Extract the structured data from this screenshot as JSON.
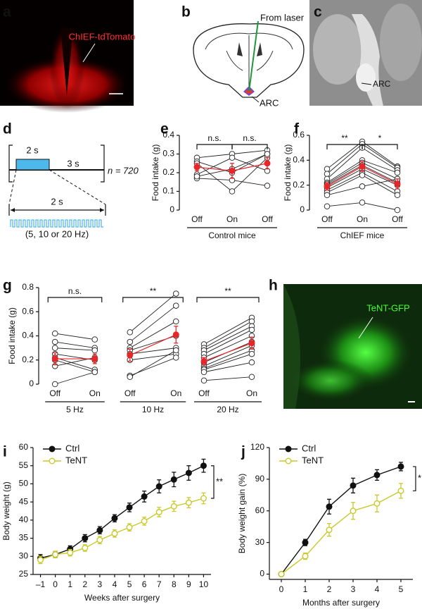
{
  "figure": {
    "letters": [
      "a",
      "b",
      "c",
      "d",
      "e",
      "f",
      "g",
      "h",
      "i",
      "j"
    ],
    "a": {
      "label": "ChIEF-tdTomato"
    },
    "b": {
      "laser": "From laser",
      "region": "ARC"
    },
    "c": {
      "region": "ARC"
    },
    "d": {
      "pulse": "2 s",
      "rest": "3 s",
      "count": "n = 720",
      "zoom": "2 s",
      "freq": "(5, 10 or 20 Hz)"
    },
    "h": {
      "label": "TeNT-GFP"
    }
  },
  "chart_data": [
    {
      "type": "line",
      "ylabel": "Food intake (g)",
      "ylim": [
        0,
        0.4
      ],
      "yticks": [
        0,
        0.1,
        0.2,
        0.3,
        0.4
      ],
      "mean_color": "#e8262a",
      "groups": [
        {
          "label": "Control mice",
          "categories": [
            "Off",
            "On",
            "Off"
          ],
          "subjects": [
            [
              0.28,
              0.3,
              0.32
            ],
            [
              0.26,
              0.2,
              0.3
            ],
            [
              0.25,
              0.1,
              0.28
            ],
            [
              0.19,
              0.28,
              0.21
            ],
            [
              0.17,
              0.16,
              0.13
            ],
            [
              0.18,
              0.22,
              0.3
            ]
          ],
          "mean": [
            0.23,
            0.21,
            0.25
          ],
          "error": [
            0.02,
            0.04,
            0.03
          ],
          "annotations": [
            "n.s.",
            "n.s."
          ]
        }
      ]
    },
    {
      "type": "line",
      "ylabel": "Food intake (g)",
      "ylim": [
        0,
        0.6
      ],
      "yticks": [
        0,
        0.2,
        0.4,
        0.6
      ],
      "mean_color": "#e8262a",
      "groups": [
        {
          "label": "ChIEF mice",
          "categories": [
            "Off",
            "On",
            "Off"
          ],
          "subjects": [
            [
              0.33,
              0.55,
              0.35
            ],
            [
              0.29,
              0.53,
              0.34
            ],
            [
              0.25,
              0.5,
              0.32
            ],
            [
              0.22,
              0.4,
              0.3
            ],
            [
              0.21,
              0.38,
              0.25
            ],
            [
              0.2,
              0.36,
              0.22
            ],
            [
              0.18,
              0.33,
              0.2
            ],
            [
              0.16,
              0.3,
              0.15
            ],
            [
              0.14,
              0.28,
              0.12
            ],
            [
              0.12,
              0.19,
              0.25
            ],
            [
              0.03,
              0.06,
              0.0
            ]
          ],
          "mean": [
            0.19,
            0.35,
            0.21
          ],
          "error": [
            0.03,
            0.04,
            0.04
          ],
          "annotations": [
            "**",
            "*"
          ]
        }
      ]
    },
    {
      "type": "line",
      "ylabel": "Food intake (g)",
      "ylim": [
        0,
        0.8
      ],
      "yticks": [
        0,
        0.2,
        0.4,
        0.6,
        0.8
      ],
      "mean_color": "#e8262a",
      "groups": [
        {
          "label": "5 Hz",
          "categories": [
            "Off",
            "On"
          ],
          "subjects": [
            [
              0.42,
              0.37
            ],
            [
              0.35,
              0.3
            ],
            [
              0.3,
              0.28
            ],
            [
              0.25,
              0.2
            ],
            [
              0.22,
              0.12
            ],
            [
              0.2,
              0.1
            ],
            [
              0.15,
              0.22
            ],
            [
              0.0,
              0.1
            ]
          ],
          "mean": [
            0.21,
            0.21
          ],
          "error": [
            0.05,
            0.04
          ],
          "annotations": [
            "n.s."
          ]
        },
        {
          "label": "10 Hz",
          "categories": [
            "Off",
            "On"
          ],
          "subjects": [
            [
              0.43,
              0.75
            ],
            [
              0.35,
              0.65
            ],
            [
              0.3,
              0.52
            ],
            [
              0.28,
              0.4
            ],
            [
              0.25,
              0.3
            ],
            [
              0.2,
              0.25
            ],
            [
              0.07,
              0.22
            ],
            [
              0.06,
              0.28
            ]
          ],
          "mean": [
            0.24,
            0.41
          ],
          "error": [
            0.05,
            0.07
          ],
          "annotations": [
            "**"
          ]
        },
        {
          "label": "20 Hz",
          "categories": [
            "Off",
            "On"
          ],
          "subjects": [
            [
              0.33,
              0.55
            ],
            [
              0.3,
              0.52
            ],
            [
              0.28,
              0.48
            ],
            [
              0.25,
              0.45
            ],
            [
              0.22,
              0.4
            ],
            [
              0.18,
              0.35
            ],
            [
              0.15,
              0.32
            ],
            [
              0.13,
              0.28
            ],
            [
              0.12,
              0.25
            ],
            [
              0.1,
              0.18
            ],
            [
              0.03,
              0.06
            ]
          ],
          "mean": [
            0.19,
            0.34
          ],
          "error": [
            0.03,
            0.05
          ],
          "annotations": [
            "**"
          ]
        }
      ]
    },
    {
      "type": "line",
      "xlabel": "Weeks after surgery",
      "ylabel": "Body weight (g)",
      "legend": "upper left",
      "annotations": [
        "**"
      ],
      "x": [
        -1,
        0,
        1,
        2,
        3,
        4,
        5,
        6,
        7,
        8,
        9,
        10
      ],
      "xlim": [
        -1.5,
        10.5
      ],
      "xticks": [
        {
          "value": -1,
          "label": "–1"
        },
        0,
        1,
        2,
        3,
        4,
        5,
        6,
        7,
        8,
        9,
        10
      ],
      "ylim": [
        25,
        60
      ],
      "yticks": [
        25,
        30,
        35,
        40,
        45,
        50,
        55,
        60
      ],
      "series": [
        {
          "name": "Ctrl",
          "color": "#111111",
          "filled": true,
          "values": [
            29.5,
            30.5,
            32,
            35,
            37.2,
            40.5,
            43.5,
            46.5,
            49.3,
            51.2,
            53,
            55
          ],
          "errors": [
            1,
            0.9,
            0.9,
            1,
            1,
            1,
            1.2,
            1.5,
            1.8,
            2,
            2,
            1.8
          ]
        },
        {
          "name": "TeNT",
          "color": "#c9c92a",
          "filled": false,
          "values": [
            29,
            30.5,
            31,
            32.3,
            34.5,
            36.3,
            38,
            39.7,
            42.2,
            43.8,
            44.8,
            46
          ],
          "errors": [
            1,
            0.9,
            0.9,
            0.9,
            1,
            1,
            1,
            1.1,
            1.3,
            1.4,
            1.4,
            1.5
          ]
        }
      ]
    },
    {
      "type": "line",
      "xlabel": "Months after surgery",
      "ylabel": "Body weight gain (%)",
      "legend": "upper left",
      "annotations": [
        "*"
      ],
      "x": [
        0,
        1,
        2,
        3,
        4,
        5
      ],
      "xlim": [
        -0.5,
        5.5
      ],
      "xticks": [
        0,
        1,
        2,
        3,
        4,
        5
      ],
      "ylim": [
        -5,
        120
      ],
      "yticks": [
        0,
        30,
        60,
        90,
        120
      ],
      "series": [
        {
          "name": "Ctrl",
          "color": "#111111",
          "filled": true,
          "values": [
            0,
            30,
            64,
            84,
            94,
            102
          ],
          "errors": [
            0,
            3,
            7,
            7,
            5,
            4
          ]
        },
        {
          "name": "TeNT",
          "color": "#c9c92a",
          "filled": false,
          "values": [
            0,
            17,
            42,
            60,
            67,
            79
          ],
          "errors": [
            0,
            3,
            6,
            8,
            8,
            7
          ]
        }
      ]
    }
  ]
}
